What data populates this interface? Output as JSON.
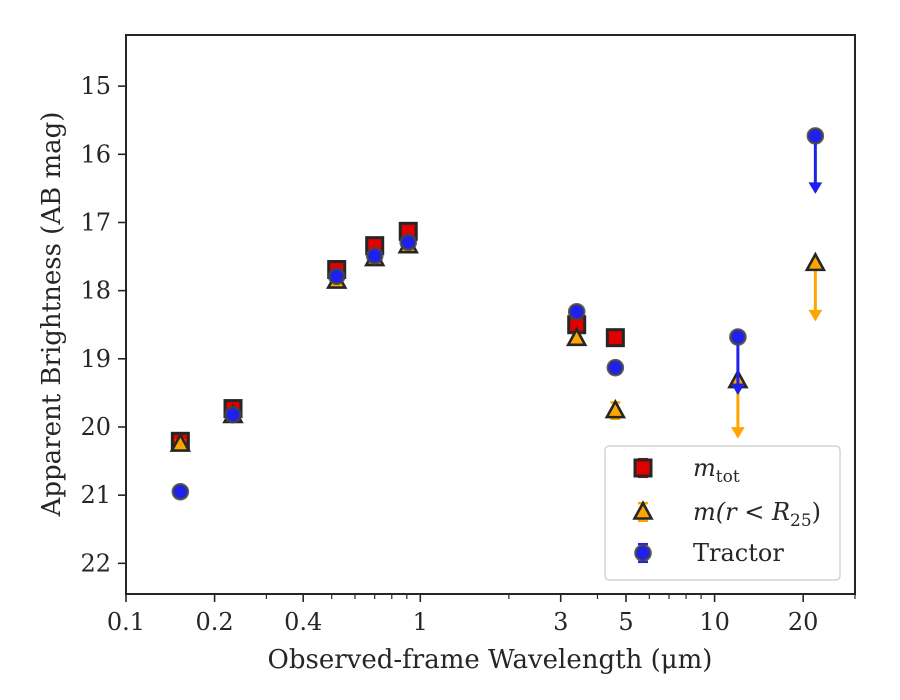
{
  "chart_data": {
    "type": "scatter",
    "xscale": "log",
    "xlabel": "Observed-frame Wavelength (μm)",
    "ylabel": "Apparent Brightness (AB mag)",
    "xlim": [
      0.1,
      30
    ],
    "ylim": [
      22.45,
      14.25
    ],
    "y_inverted": true,
    "grid": false,
    "legend_position": "lower right",
    "x_tick_labels": [
      "0.1",
      "0.2",
      "0.4",
      "1",
      "3",
      "5",
      "10",
      "20"
    ],
    "x_ticks": [
      0.1,
      0.2,
      0.4,
      1,
      3,
      5,
      10,
      20
    ],
    "y_ticks": [
      15,
      16,
      17,
      18,
      19,
      20,
      21,
      22
    ],
    "series": [
      {
        "name": "m_tot",
        "marker": "square",
        "color": "#e00000",
        "points": [
          {
            "x": 0.153,
            "y": 20.21,
            "err": 0.08
          },
          {
            "x": 0.231,
            "y": 19.73,
            "err": 0.05
          },
          {
            "x": 0.52,
            "y": 17.69,
            "err": 0.05
          },
          {
            "x": 0.7,
            "y": 17.34,
            "err": 0.05
          },
          {
            "x": 0.91,
            "y": 17.13,
            "err": 0.05
          },
          {
            "x": 3.4,
            "y": 18.5,
            "err": 0.05
          },
          {
            "x": 4.6,
            "y": 18.69,
            "err": 0.05
          }
        ]
      },
      {
        "name": "m(r<R25)",
        "marker": "triangle",
        "color": "#ffa500",
        "points": [
          {
            "x": 0.153,
            "y": 20.25,
            "err": 0.05
          },
          {
            "x": 0.231,
            "y": 19.83,
            "err": 0.05
          },
          {
            "x": 0.52,
            "y": 17.86,
            "err": 0.05
          },
          {
            "x": 0.7,
            "y": 17.53,
            "err": 0.05
          },
          {
            "x": 0.91,
            "y": 17.34,
            "err": 0.05
          },
          {
            "x": 3.4,
            "y": 18.7,
            "err": 0.05
          },
          {
            "x": 4.6,
            "y": 19.76,
            "err": 0.12
          },
          {
            "x": 12.0,
            "y": 19.32,
            "upper_limit": true
          },
          {
            "x": 22.0,
            "y": 17.6,
            "upper_limit": true
          }
        ]
      },
      {
        "name": "Tractor",
        "marker": "circle",
        "color": "#2020ee",
        "points": [
          {
            "x": 0.153,
            "y": 20.95,
            "err": 0.05
          },
          {
            "x": 0.231,
            "y": 19.82,
            "err": 0.05
          },
          {
            "x": 0.52,
            "y": 17.79,
            "err": 0.05
          },
          {
            "x": 0.7,
            "y": 17.49,
            "err": 0.05
          },
          {
            "x": 0.91,
            "y": 17.29,
            "err": 0.05
          },
          {
            "x": 3.4,
            "y": 18.31,
            "err": 0.05
          },
          {
            "x": 4.6,
            "y": 19.13,
            "err": 0.08
          },
          {
            "x": 12.0,
            "y": 18.68,
            "upper_limit": true
          },
          {
            "x": 22.0,
            "y": 15.73,
            "upper_limit": true
          }
        ]
      }
    ],
    "legend": [
      {
        "label": "m",
        "subscript": "tot",
        "series": 0
      },
      {
        "label": "m(r < R",
        "subscript": "25",
        "suffix": ")",
        "series": 1
      },
      {
        "label": "Tractor",
        "subscript": "",
        "series": 2
      }
    ]
  }
}
